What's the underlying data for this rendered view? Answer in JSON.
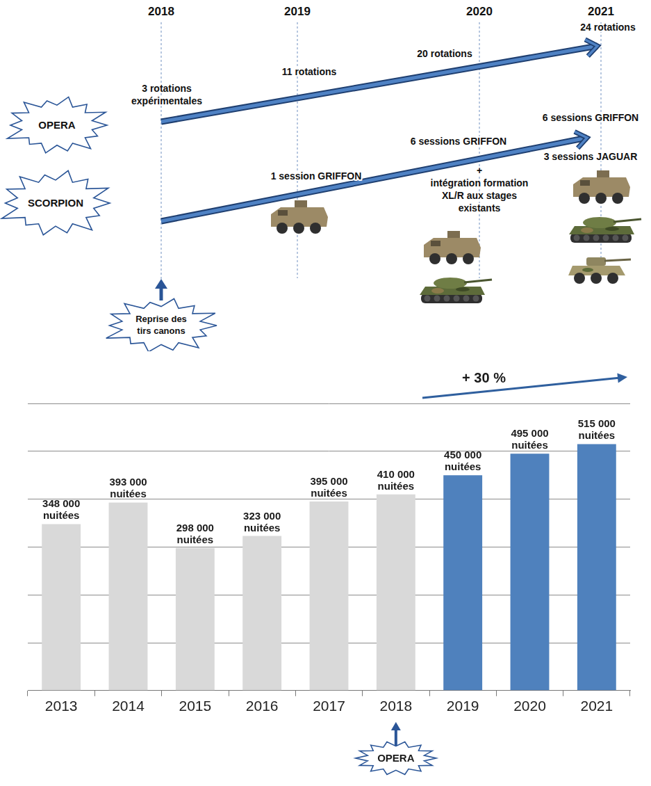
{
  "timeline": {
    "years": [
      "2018",
      "2019",
      "2020",
      "2021"
    ],
    "rows": [
      {
        "name": "OPERA",
        "milestones": [
          {
            "year": "2018",
            "text": [
              "3 rotations",
              "expérimentales"
            ]
          },
          {
            "year": "2019",
            "text": [
              "11 rotations"
            ]
          },
          {
            "year": "2020",
            "text": [
              "20 rotations"
            ]
          },
          {
            "year": "2021",
            "text": [
              "24 rotations"
            ]
          }
        ]
      },
      {
        "name": "SCORPION",
        "milestones": [
          {
            "year": "2019",
            "text": [
              "1 session GRIFFON"
            ]
          },
          {
            "year": "2020",
            "text": [
              "6 sessions GRIFFON",
              "+",
              "intégration formation",
              "XL/R aux stages",
              "existants"
            ]
          },
          {
            "year": "2021",
            "text": [
              "6 sessions GRIFFON",
              "3 sessions JAGUAR"
            ]
          }
        ]
      }
    ],
    "event": {
      "year": "2018",
      "text": [
        "Reprise des",
        "tirs canons"
      ]
    }
  },
  "chart_data": {
    "type": "bar",
    "categories": [
      "2013",
      "2014",
      "2015",
      "2016",
      "2017",
      "2018",
      "2019",
      "2020",
      "2021"
    ],
    "values": [
      348000,
      393000,
      298000,
      323000,
      395000,
      410000,
      450000,
      495000,
      515000
    ],
    "value_labels": [
      "348 000 nuitées",
      "393 000 nuitées",
      "298 000 nuitées",
      "323 000 nuitées",
      "395 000 nuitées",
      "410 000 nuitées",
      "450 000 nuitées",
      "495 000 nuitées",
      "515 000 nuitées"
    ],
    "colors": [
      "#d9d9d9",
      "#d9d9d9",
      "#d9d9d9",
      "#d9d9d9",
      "#d9d9d9",
      "#d9d9d9",
      "#4f81bd",
      "#4f81bd",
      "#4f81bd"
    ],
    "ylim": [
      0,
      600000
    ],
    "yticks": [
      0,
      100000,
      200000,
      300000,
      400000,
      500000,
      600000
    ],
    "grid": true,
    "tick_labels": "x",
    "data_labels": true,
    "annotations": [
      {
        "text": "+ 30 %",
        "from": "2018",
        "to": "2021"
      },
      {
        "text": "OPERA",
        "category": "2018"
      }
    ]
  }
}
